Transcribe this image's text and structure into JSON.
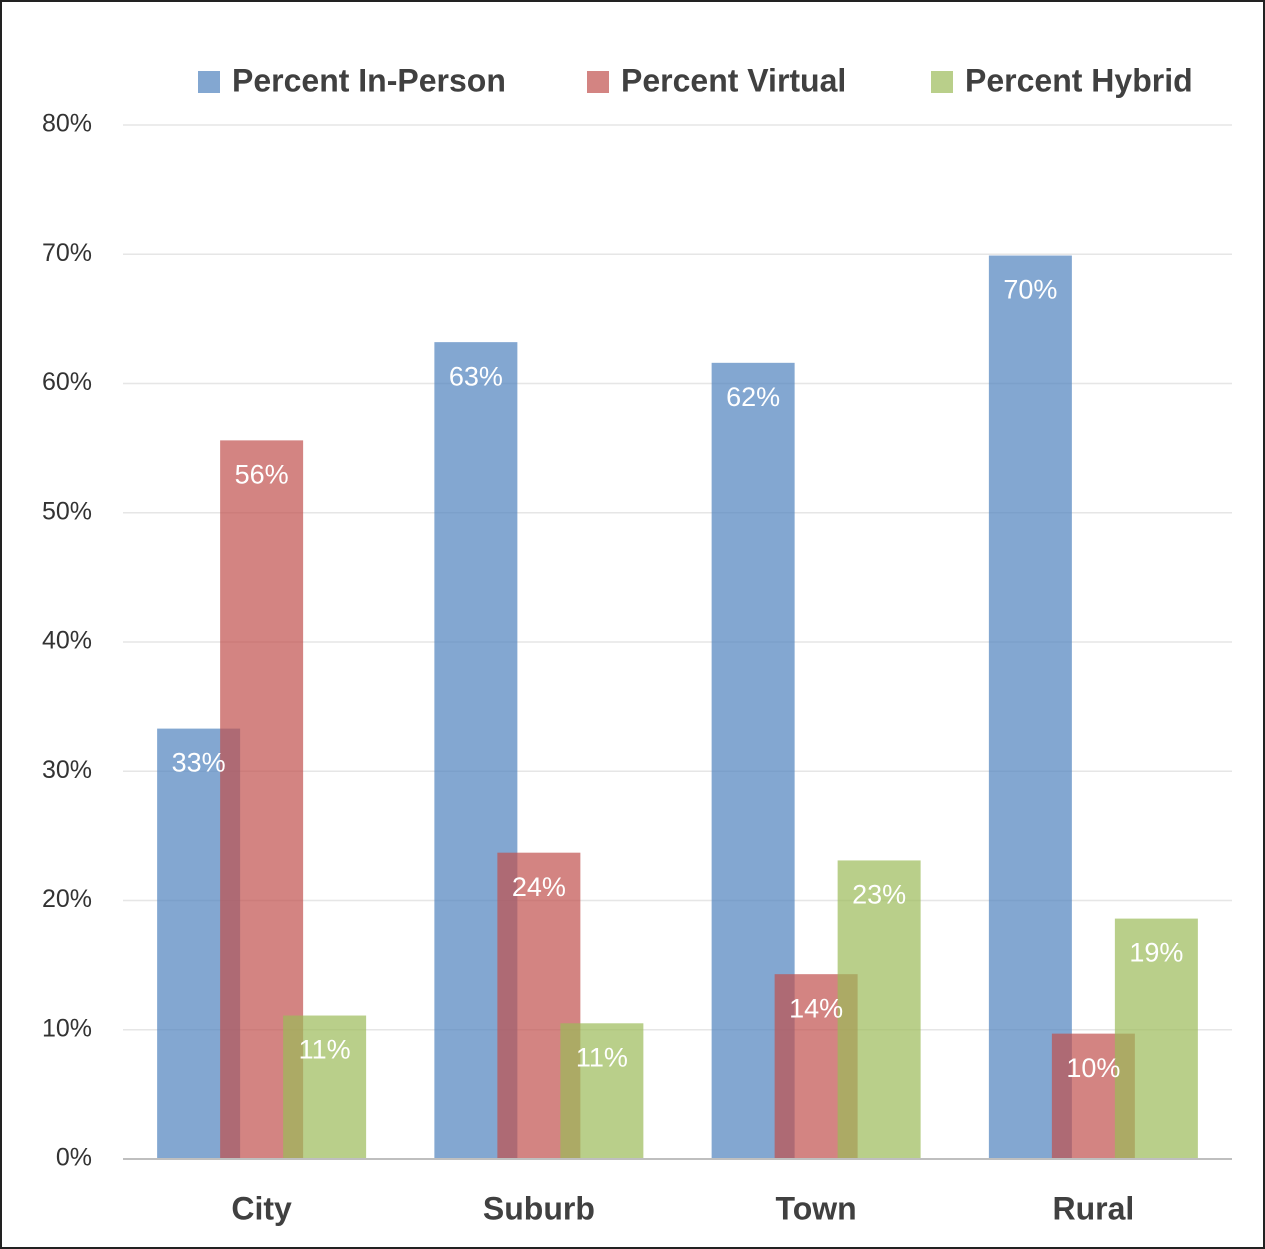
{
  "chart_data": {
    "type": "bar",
    "categories": [
      "City",
      "Suburb",
      "Town",
      "Rural"
    ],
    "series": [
      {
        "name": "Percent In-Person",
        "color": "#4f81bd",
        "values": [
          33.3,
          63.2,
          61.6,
          69.9
        ],
        "value_labels": [
          "33%",
          "63%",
          "62%",
          "70%"
        ]
      },
      {
        "name": "Percent Virtual",
        "color": "#c0504d",
        "values": [
          55.6,
          23.7,
          14.3,
          9.7
        ],
        "value_labels": [
          "56%",
          "24%",
          "14%",
          "10%"
        ]
      },
      {
        "name": "Percent Hybrid",
        "color": "#9bbb59",
        "values": [
          11.1,
          10.5,
          23.1,
          18.6
        ],
        "value_labels": [
          "11%",
          "11%",
          "23%",
          "19%"
        ]
      }
    ],
    "ylim": [
      0,
      80
    ],
    "yticks": [
      {
        "value": 0,
        "label": "0%"
      },
      {
        "value": 10,
        "label": "10%"
      },
      {
        "value": 20,
        "label": "20%"
      },
      {
        "value": 30,
        "label": "30%"
      },
      {
        "value": 40,
        "label": "40%"
      },
      {
        "value": 50,
        "label": "50%"
      },
      {
        "value": 60,
        "label": "60%"
      },
      {
        "value": 70,
        "label": "70%"
      },
      {
        "value": 80,
        "label": "80%"
      }
    ],
    "grid": true,
    "legend": "top"
  }
}
